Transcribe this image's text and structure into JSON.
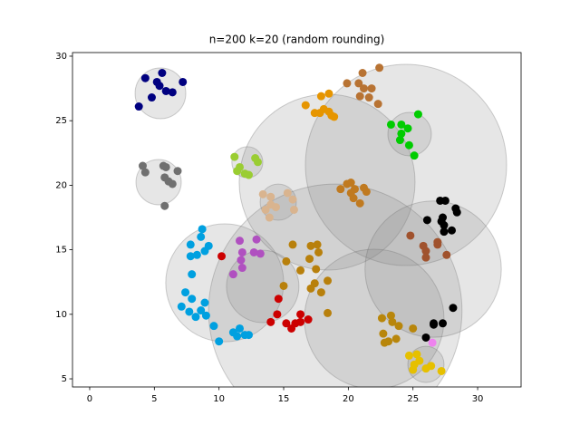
{
  "chart_data": {
    "type": "scatter",
    "title": "n=200 k=20 (random rounding)",
    "xlim": [
      -1.33,
      33.36
    ],
    "ylim": [
      4.37,
      30.28
    ],
    "xticks": [
      0,
      5,
      10,
      15,
      20,
      25,
      30
    ],
    "yticks": [
      5,
      10,
      15,
      20,
      25,
      30
    ],
    "circles": [
      {
        "x": 5.47,
        "y": 27.12,
        "r": 1.96
      },
      {
        "x": 5.33,
        "y": 20.24,
        "r": 1.75
      },
      {
        "x": 12.19,
        "y": 21.78,
        "r": 1.2
      },
      {
        "x": 14.58,
        "y": 18.69,
        "r": 1.4
      },
      {
        "x": 10.44,
        "y": 12.44,
        "r": 4.56
      },
      {
        "x": 13.38,
        "y": 12.16,
        "r": 2.8
      },
      {
        "x": 18.36,
        "y": 20.24,
        "r": 6.8
      },
      {
        "x": 24.46,
        "y": 21.57,
        "r": 7.78
      },
      {
        "x": 24.74,
        "y": 23.96,
        "r": 1.68
      },
      {
        "x": 18.99,
        "y": 10.27,
        "r": 9.8
      },
      {
        "x": 22.0,
        "y": 9.63,
        "r": 5.4
      },
      {
        "x": 26.56,
        "y": 13.5,
        "r": 5.27
      },
      {
        "x": 26.0,
        "y": 6.12,
        "r": 1.4
      }
    ],
    "series": [
      {
        "color": "#000080",
        "x": [
          3.8,
          4.3,
          4.8,
          5.2,
          5.6,
          5.4,
          5.9,
          6.4,
          7.2
        ],
        "values": [
          26.1,
          28.3,
          26.8,
          28.0,
          28.7,
          27.7,
          27.3,
          27.2,
          28.0
        ]
      },
      {
        "color": "#707070",
        "x": [
          4.1,
          4.3,
          5.7,
          5.9,
          5.8,
          6.4,
          6.8,
          5.8,
          6.1
        ],
        "values": [
          21.5,
          21.0,
          21.5,
          21.4,
          20.6,
          20.1,
          21.1,
          18.4,
          20.3
        ]
      },
      {
        "color": "#9acd32",
        "x": [
          11.2,
          11.4,
          12.0,
          12.8,
          13.0,
          12.3,
          11.6
        ],
        "values": [
          22.2,
          21.1,
          20.9,
          22.1,
          21.8,
          20.8,
          21.4
        ]
      },
      {
        "color": "#d9b48f",
        "x": [
          13.4,
          14.0,
          14.0,
          13.6,
          14.4,
          15.3,
          15.7,
          15.8,
          13.9
        ],
        "values": [
          19.3,
          19.1,
          18.5,
          18.1,
          18.3,
          19.4,
          18.9,
          18.1,
          17.5
        ]
      },
      {
        "color": "#e69500",
        "x": [
          16.7,
          17.9,
          18.5,
          17.8,
          18.1,
          18.5,
          18.7,
          18.9,
          17.4
        ],
        "values": [
          26.2,
          26.9,
          27.1,
          25.6,
          25.9,
          25.7,
          25.4,
          25.3,
          25.6
        ]
      },
      {
        "color": "#b87333",
        "x": [
          19.9,
          20.8,
          21.1,
          22.4,
          20.9,
          21.6,
          22.3,
          21.2,
          21.8
        ],
        "values": [
          27.9,
          27.9,
          28.7,
          29.1,
          26.9,
          26.8,
          26.3,
          27.5,
          27.5
        ]
      },
      {
        "color": "#00cc00",
        "x": [
          23.3,
          24.1,
          24.6,
          25.4,
          24.0,
          24.7,
          25.1,
          24.1
        ],
        "values": [
          24.7,
          24.7,
          24.4,
          25.5,
          23.5,
          23.1,
          22.3,
          24.0
        ]
      },
      {
        "color": "#b8800c",
        "x": [
          15.7,
          17.1,
          17.6,
          17.0,
          17.7,
          15.2,
          16.3,
          17.5,
          17.1,
          17.9,
          18.4,
          18.4,
          15.0,
          17.4
        ],
        "values": [
          15.4,
          15.3,
          15.4,
          14.3,
          14.8,
          14.1,
          13.4,
          13.5,
          12.0,
          11.7,
          12.6,
          10.1,
          12.2,
          12.4
        ]
      },
      {
        "color": "#c07a20",
        "x": [
          19.9,
          20.2,
          20.5,
          20.9,
          20.2,
          19.4,
          21.2,
          21.4,
          20.4
        ],
        "values": [
          20.1,
          20.2,
          19.7,
          18.6,
          19.4,
          19.7,
          19.8,
          19.5,
          19.0
        ]
      },
      {
        "color": "#a0522d",
        "x": [
          24.8,
          25.8,
          26.0,
          26.0,
          26.9,
          27.6,
          26.9
        ],
        "values": [
          16.1,
          15.3,
          14.9,
          14.4,
          15.4,
          14.6,
          15.6
        ]
      },
      {
        "color": "#000000",
        "x": [
          27.1,
          27.5,
          27.3,
          27.2,
          27.4,
          28.0,
          26.1,
          28.3,
          28.4,
          27.4,
          28.1,
          26.6,
          27.3,
          26.6,
          26.0
        ],
        "values": [
          18.8,
          18.8,
          17.5,
          17.2,
          16.9,
          16.5,
          17.3,
          18.2,
          17.9,
          16.4,
          10.5,
          9.3,
          9.3,
          9.2,
          8.2
        ]
      },
      {
        "color": "#b8860b",
        "x": [
          22.6,
          23.3,
          23.4,
          23.9,
          22.7,
          23.1,
          23.7,
          22.8,
          25.0
        ],
        "values": [
          9.7,
          9.9,
          9.4,
          9.1,
          8.5,
          7.9,
          8.1,
          7.8,
          8.9
        ]
      },
      {
        "color": "#e6c000",
        "x": [
          24.7,
          25.1,
          25.5,
          26.0,
          27.2,
          26.4,
          25.0,
          25.3
        ],
        "values": [
          6.8,
          6.1,
          6.4,
          5.8,
          5.6,
          6.0,
          5.7,
          6.9
        ]
      },
      {
        "color": "#ee82ee",
        "x": [
          26.5
        ],
        "values": [
          7.8
        ]
      },
      {
        "color": "#00a0e0",
        "x": [
          8.7,
          7.8,
          8.6,
          9.2,
          7.8,
          8.3,
          8.9,
          7.9,
          7.4,
          7.9,
          7.7,
          8.2,
          8.6,
          9.0,
          9.6,
          10.0,
          7.1,
          8.9,
          11.1,
          11.6,
          12.0,
          12.3,
          11.4
        ],
        "values": [
          16.6,
          15.4,
          16.0,
          15.3,
          14.5,
          14.6,
          14.9,
          13.1,
          11.7,
          11.2,
          10.2,
          9.8,
          10.3,
          9.9,
          9.1,
          7.9,
          10.6,
          10.9,
          8.6,
          8.9,
          8.4,
          8.4,
          8.3
        ]
      },
      {
        "color": "#b050c0",
        "x": [
          11.6,
          11.8,
          11.7,
          11.8,
          11.1,
          12.9,
          12.7,
          13.2
        ],
        "values": [
          15.7,
          14.8,
          14.2,
          13.6,
          13.1,
          15.8,
          14.8,
          14.7
        ]
      },
      {
        "color": "#cc0000",
        "x": [
          10.2,
          14.6,
          14.0,
          14.5,
          15.2,
          15.6,
          16.3,
          16.3,
          16.9,
          15.9
        ],
        "values": [
          14.5,
          11.2,
          9.4,
          10.0,
          9.3,
          8.9,
          10.0,
          9.4,
          9.6,
          9.3
        ]
      }
    ]
  }
}
